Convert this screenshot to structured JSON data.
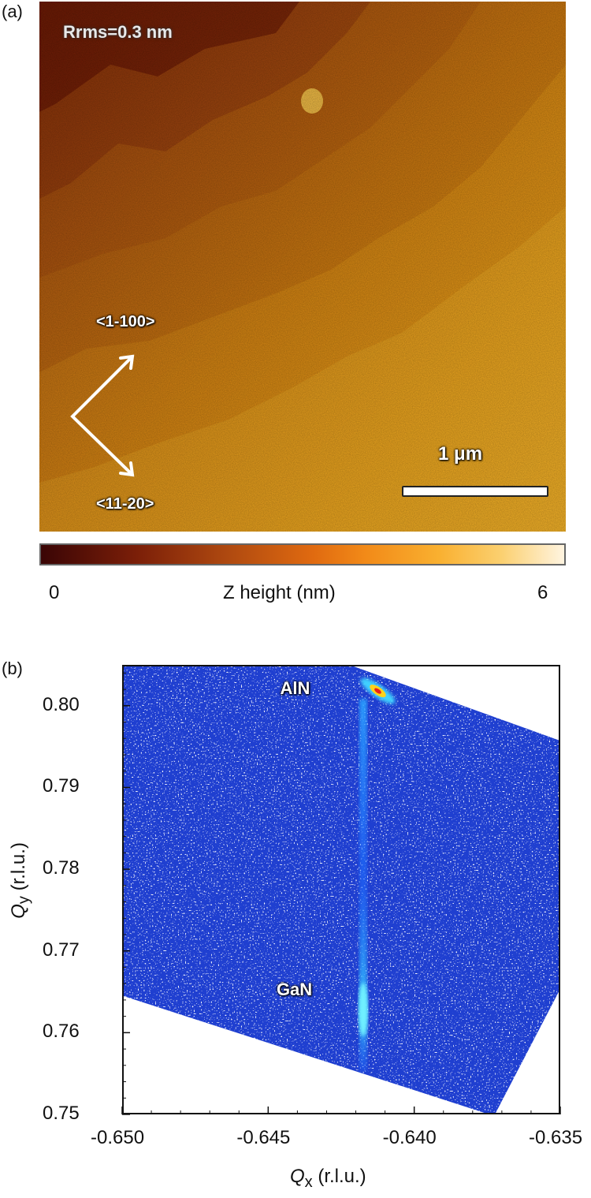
{
  "panel_a": {
    "label": "(a)",
    "rms_text": "Rrms=0.3 nm",
    "direction_1": "<1-100>",
    "direction_2": "<11-20>",
    "scale_bar_label": "1 μm",
    "colorbar": {
      "min_label": "0",
      "max_label": "6",
      "title": "Z height (nm)",
      "colors": [
        "#3a0505",
        "#7a1e08",
        "#b04a10",
        "#e06a10",
        "#f9b030",
        "#fff4e0"
      ]
    }
  },
  "panel_b": {
    "label": "(b)",
    "peak_labels": {
      "top": "AlN",
      "bottom": "GaN"
    },
    "chart_data": {
      "type": "heatmap",
      "xlabel_main": "Q",
      "xlabel_sub": "x",
      "xlabel_unit": " (r.l.u.)",
      "ylabel_main": "Q",
      "ylabel_sub": "y",
      "ylabel_unit": " (r.l.u.)",
      "xlim": [
        -0.65,
        -0.635
      ],
      "ylim": [
        0.75,
        0.805
      ],
      "x_ticks": [
        "-0.650",
        "-0.645",
        "-0.640",
        "-0.635"
      ],
      "y_ticks": [
        "0.75",
        "0.76",
        "0.77",
        "0.78",
        "0.79",
        "0.80"
      ],
      "x_tick_values": [
        -0.65,
        -0.645,
        -0.64,
        -0.635
      ],
      "y_tick_values": [
        0.75,
        0.76,
        0.77,
        0.78,
        0.79,
        0.8
      ],
      "peaks": [
        {
          "name": "AlN",
          "qx": -0.6413,
          "qy": 0.802
        },
        {
          "name": "GaN",
          "qx": -0.6418,
          "qy": 0.763
        }
      ],
      "streak_qx": -0.6418,
      "background_color": "#1f3fd0"
    }
  }
}
